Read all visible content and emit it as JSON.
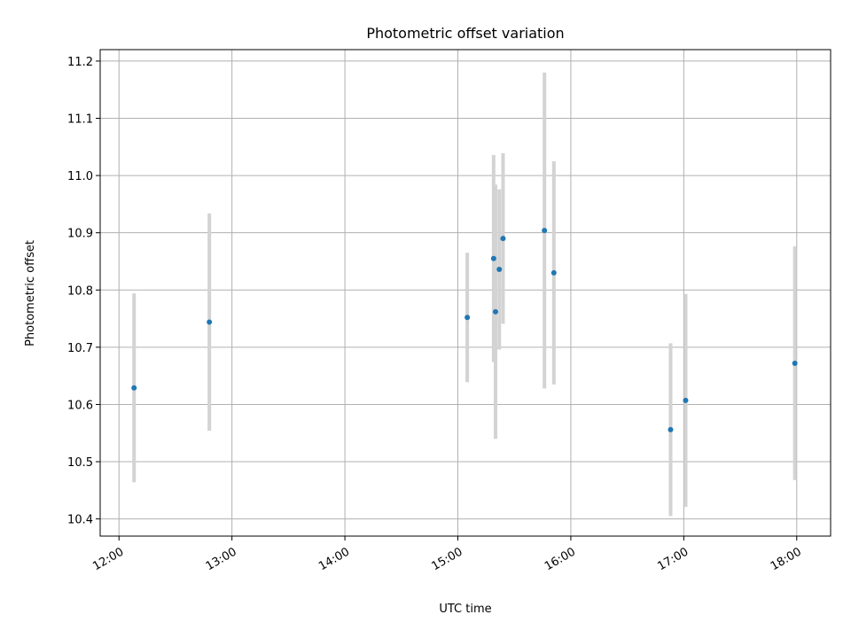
{
  "chart_data": {
    "type": "scatter",
    "title": "Photometric offset variation",
    "xlabel": "UTC time",
    "ylabel": "Photometric offset",
    "x_ticks": [
      "12:00",
      "13:00",
      "14:00",
      "15:00",
      "16:00",
      "17:00",
      "18:00"
    ],
    "y_ticks": [
      "10.4",
      "10.5",
      "10.6",
      "10.7",
      "10.8",
      "10.9",
      "11.0",
      "11.1",
      "11.2"
    ],
    "xlim": [
      "11:50",
      "18:18"
    ],
    "ylim": [
      10.37,
      11.22
    ],
    "grid": true,
    "series": [
      {
        "points": [
          {
            "x": "12:08",
            "y": 10.629,
            "err": 0.165
          },
          {
            "x": "12:48",
            "y": 10.744,
            "err": 0.19
          },
          {
            "x": "15:05",
            "y": 10.752,
            "err": 0.113
          },
          {
            "x": "15:19",
            "y": 10.855,
            "err": 0.181
          },
          {
            "x": "15:20",
            "y": 10.762,
            "err": 0.222
          },
          {
            "x": "15:22",
            "y": 10.836,
            "err": 0.14
          },
          {
            "x": "15:24",
            "y": 10.89,
            "err": 0.149
          },
          {
            "x": "15:46",
            "y": 10.904,
            "err": 0.276
          },
          {
            "x": "15:51",
            "y": 10.83,
            "err": 0.195
          },
          {
            "x": "16:53",
            "y": 10.556,
            "err": 0.151
          },
          {
            "x": "17:01",
            "y": 10.607,
            "err": 0.186
          },
          {
            "x": "17:59",
            "y": 10.672,
            "err": 0.204
          }
        ]
      }
    ],
    "colors": {
      "point": "#1f77b4",
      "errorbar": "#d3d3d3",
      "grid": "#b0b0b0"
    }
  }
}
